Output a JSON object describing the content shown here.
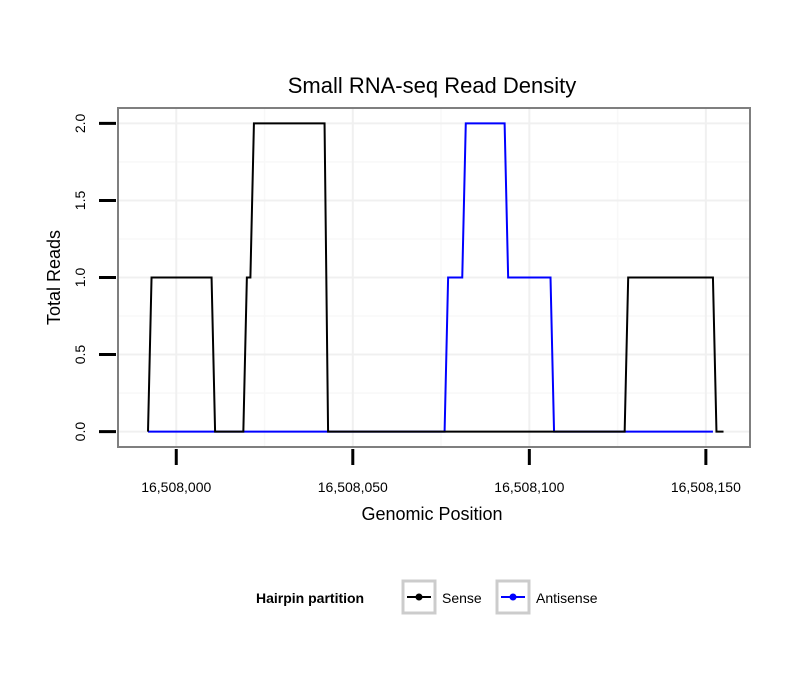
{
  "chart_data": {
    "type": "line",
    "title": "Small RNA-seq Read Density",
    "xlabel": "Genomic Position",
    "ylabel": "Total Reads",
    "xlim": [
      16507983.5,
      16508162.5
    ],
    "ylim": [
      -0.1,
      2.1
    ],
    "x_ticks": [
      16508000,
      16508050,
      16508100,
      16508150
    ],
    "x_tick_labels": [
      "16,508,000",
      "16,508,050",
      "16,508,100",
      "16,508,150"
    ],
    "y_ticks": [
      0.0,
      0.5,
      1.0,
      1.5,
      2.0
    ],
    "y_tick_labels": [
      "0.0",
      "0.5",
      "1.0",
      "1.5",
      "2.0"
    ],
    "grid": true,
    "legend": {
      "title": "Hairpin partition",
      "position": "bottom"
    },
    "series": [
      {
        "name": "Sense",
        "color": "#000000",
        "x": [
          16507992,
          16507993,
          16508010,
          16508011,
          16508019,
          16508020,
          16508021,
          16508022,
          16508042,
          16508043,
          16508127,
          16508128,
          16508152,
          16508153,
          16508155
        ],
        "y": [
          0,
          1,
          1,
          0,
          0,
          1,
          1,
          2,
          2,
          0,
          0,
          1,
          1,
          0,
          0
        ]
      },
      {
        "name": "Antisense",
        "color": "#0000ff",
        "x": [
          16507992,
          16508076,
          16508077,
          16508081,
          16508082,
          16508093,
          16508094,
          16508106,
          16508107,
          16508152
        ],
        "y": [
          0,
          0,
          1,
          1,
          2,
          2,
          1,
          1,
          0,
          0
        ]
      }
    ]
  }
}
